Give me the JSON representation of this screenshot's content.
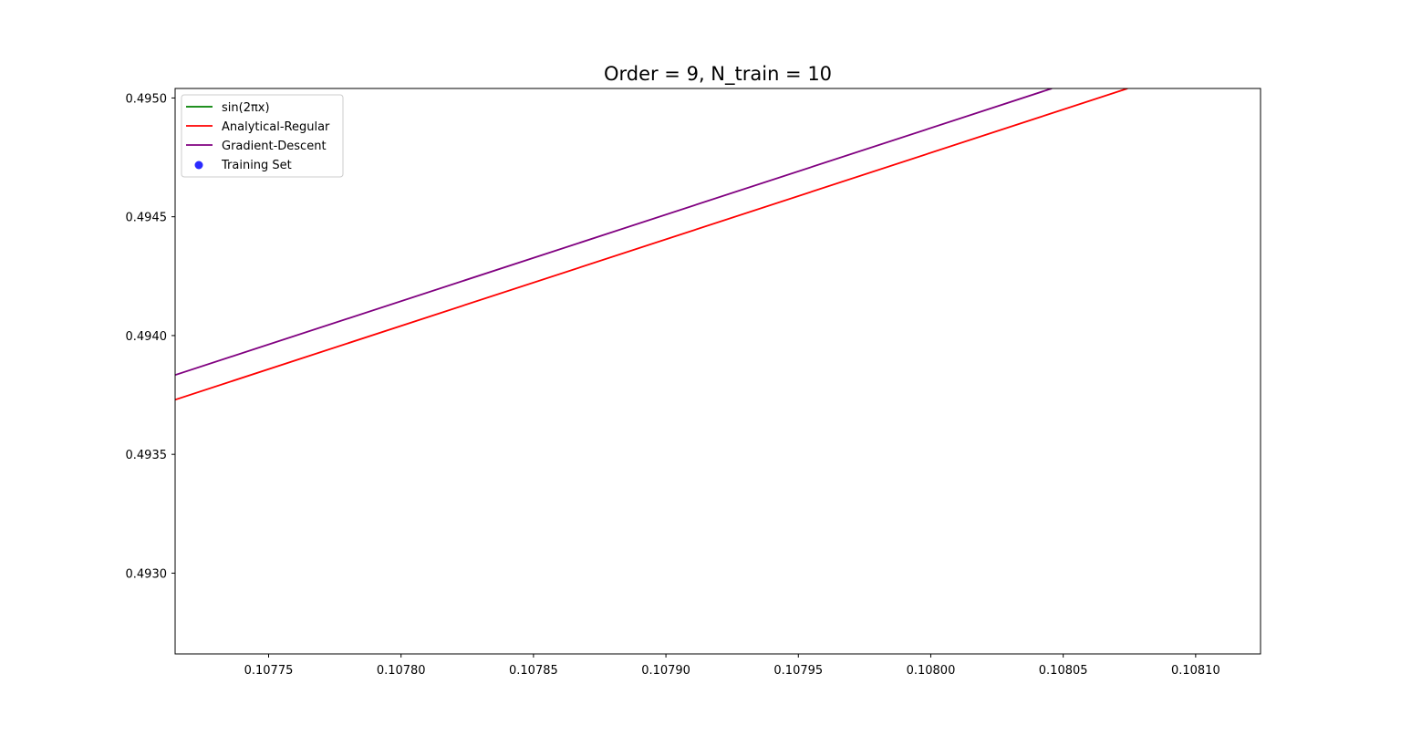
{
  "chart_data": {
    "type": "line",
    "title": "Order = 9, N_train = 10",
    "xlabel": "",
    "ylabel": "",
    "xlim": [
      0.1077147,
      0.1081245
    ],
    "ylim": [
      0.49266,
      0.49504
    ],
    "x_ticks": [
      {
        "value": 0.10775,
        "label": "0.10775"
      },
      {
        "value": 0.1078,
        "label": "0.10780"
      },
      {
        "value": 0.10785,
        "label": "0.10785"
      },
      {
        "value": 0.1079,
        "label": "0.10790"
      },
      {
        "value": 0.10795,
        "label": "0.10795"
      },
      {
        "value": 0.108,
        "label": "0.10800"
      },
      {
        "value": 0.10805,
        "label": "0.10805"
      },
      {
        "value": 0.1081,
        "label": "0.10810"
      }
    ],
    "y_ticks": [
      {
        "value": 0.493,
        "label": "0.4930"
      },
      {
        "value": 0.4935,
        "label": "0.4935"
      },
      {
        "value": 0.494,
        "label": "0.4940"
      },
      {
        "value": 0.4945,
        "label": "0.4945"
      },
      {
        "value": 0.495,
        "label": "0.4950"
      }
    ],
    "grid": false,
    "legend_position": "upper-left",
    "series": [
      {
        "name": "sin(2πx)",
        "color": "#008000",
        "kind": "line",
        "x": [],
        "y": []
      },
      {
        "name": "Analytical-Regular",
        "color": "#ff0000",
        "kind": "line",
        "x": [
          0.1077147,
          0.1080743
        ],
        "y": [
          0.49373,
          0.49504
        ]
      },
      {
        "name": "Gradient-Descent",
        "color": "#800080",
        "kind": "line",
        "x": [
          0.1077147,
          0.1080457
        ],
        "y": [
          0.493834,
          0.49504
        ]
      },
      {
        "name": "Training Set",
        "color": "#2b2bff",
        "kind": "scatter",
        "x": [],
        "y": []
      }
    ]
  }
}
